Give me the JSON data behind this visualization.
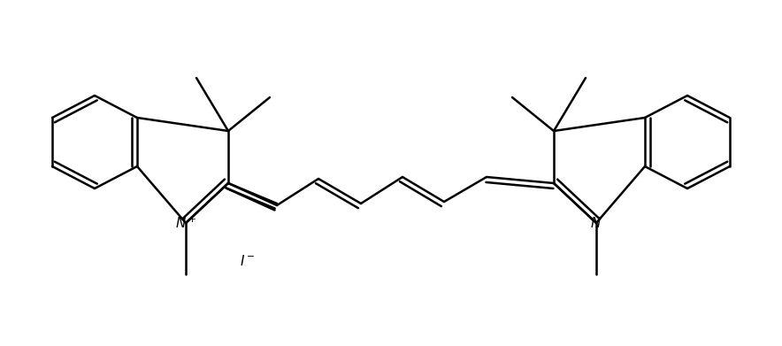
{
  "bg_color": "#ffffff",
  "line_color": "#000000",
  "figsize": [
    8.84,
    3.91
  ],
  "dpi": 100,
  "lw": 1.8,
  "font_size": 10
}
